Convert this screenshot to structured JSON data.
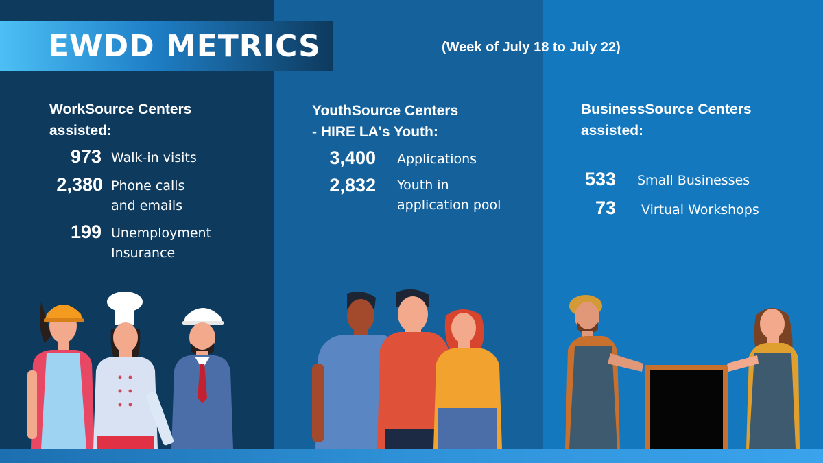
{
  "header": {
    "title": "EWDD METRICS",
    "week": "(Week of July 18 to July 22)"
  },
  "worksource": {
    "heading_line1": "WorkSource Centers",
    "heading_line2": "assisted:",
    "stats": [
      {
        "value": "973",
        "label1": "Walk-in visits",
        "label2": ""
      },
      {
        "value": "2,380",
        "label1": "Phone calls",
        "label2": "and emails"
      },
      {
        "value": "199",
        "label1": "Unemployment",
        "label2": "Insurance"
      }
    ]
  },
  "youthsource": {
    "heading_line1": "YouthSource Centers",
    "heading_line2": "- HIRE LA's Youth:",
    "stats": [
      {
        "value": "3,400",
        "label1": "Applications",
        "label2": ""
      },
      {
        "value": "2,832",
        "label1": "Youth in",
        "label2": "application pool"
      }
    ]
  },
  "businesssource": {
    "heading_line1": "BusinessSource Centers",
    "heading_line2": "assisted:",
    "stats": [
      {
        "value": "533",
        "label1": "Small Businesses"
      },
      {
        "value": "73",
        "label1": "Virtual Workshops"
      }
    ]
  },
  "colors": {
    "left_panel": "#0e3a5e",
    "middle_panel": "#15619b",
    "right_panel": "#1478bf",
    "banner_accent": "#4cc0f5"
  }
}
